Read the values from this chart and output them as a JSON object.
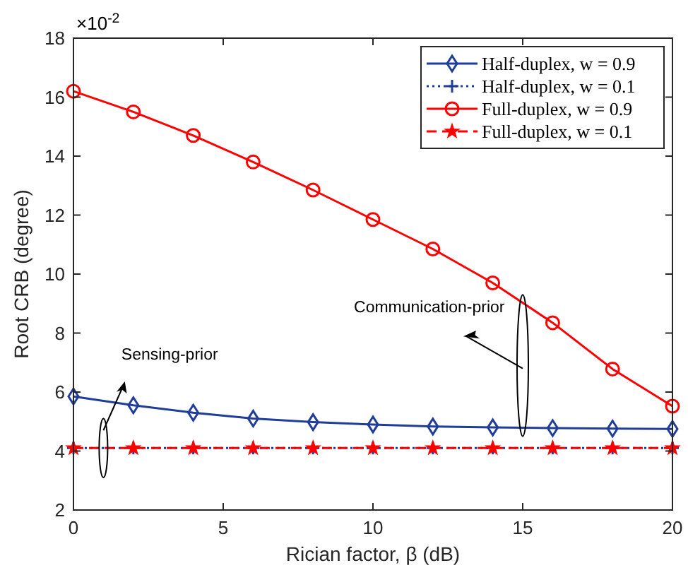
{
  "chart_data": {
    "type": "line",
    "xlabel": "Rician factor, β (dB)",
    "ylabel": "Root CRB (degree)",
    "x": [
      0,
      2,
      4,
      6,
      8,
      10,
      12,
      14,
      16,
      18,
      20
    ],
    "xlim": [
      0,
      20
    ],
    "xticks": [
      0,
      5,
      10,
      15,
      20
    ],
    "ylim": [
      2,
      18
    ],
    "yticks": [
      2,
      4,
      6,
      8,
      10,
      12,
      14,
      16,
      18
    ],
    "grid": false,
    "legend": "top right",
    "series": [
      {
        "name": "Half-duplex, w = 0.9",
        "color": "#1f3d99",
        "marker": "diamond",
        "line_style": "solid",
        "values": [
          5.85,
          5.55,
          5.3,
          5.1,
          4.98,
          4.9,
          4.83,
          4.8,
          4.78,
          4.76,
          4.75
        ]
      },
      {
        "name": "Half-duplex, w = 0.1",
        "color": "#1f3d99",
        "marker": "cross",
        "line_style": "dotted",
        "values": [
          4.1,
          4.1,
          4.1,
          4.1,
          4.1,
          4.1,
          4.1,
          4.1,
          4.1,
          4.1,
          4.1
        ]
      },
      {
        "name": "Full-duplex, w = 0.9",
        "color": "#ff0000",
        "marker": "circle",
        "line_style": "solid",
        "values": [
          16.2,
          15.5,
          14.7,
          13.8,
          12.85,
          11.85,
          10.85,
          9.7,
          8.35,
          6.78,
          5.52
        ]
      },
      {
        "name": "Full-duplex, w = 0.1",
        "color": "#ff0000",
        "marker": "star",
        "line_style": "dashed",
        "values": [
          4.1,
          4.1,
          4.1,
          4.1,
          4.1,
          4.1,
          4.1,
          4.1,
          4.1,
          4.1,
          4.1
        ]
      }
    ],
    "annotations": [
      "×10$^{-2}$",
      "Sensing-prior",
      "Communication-prior"
    ]
  }
}
